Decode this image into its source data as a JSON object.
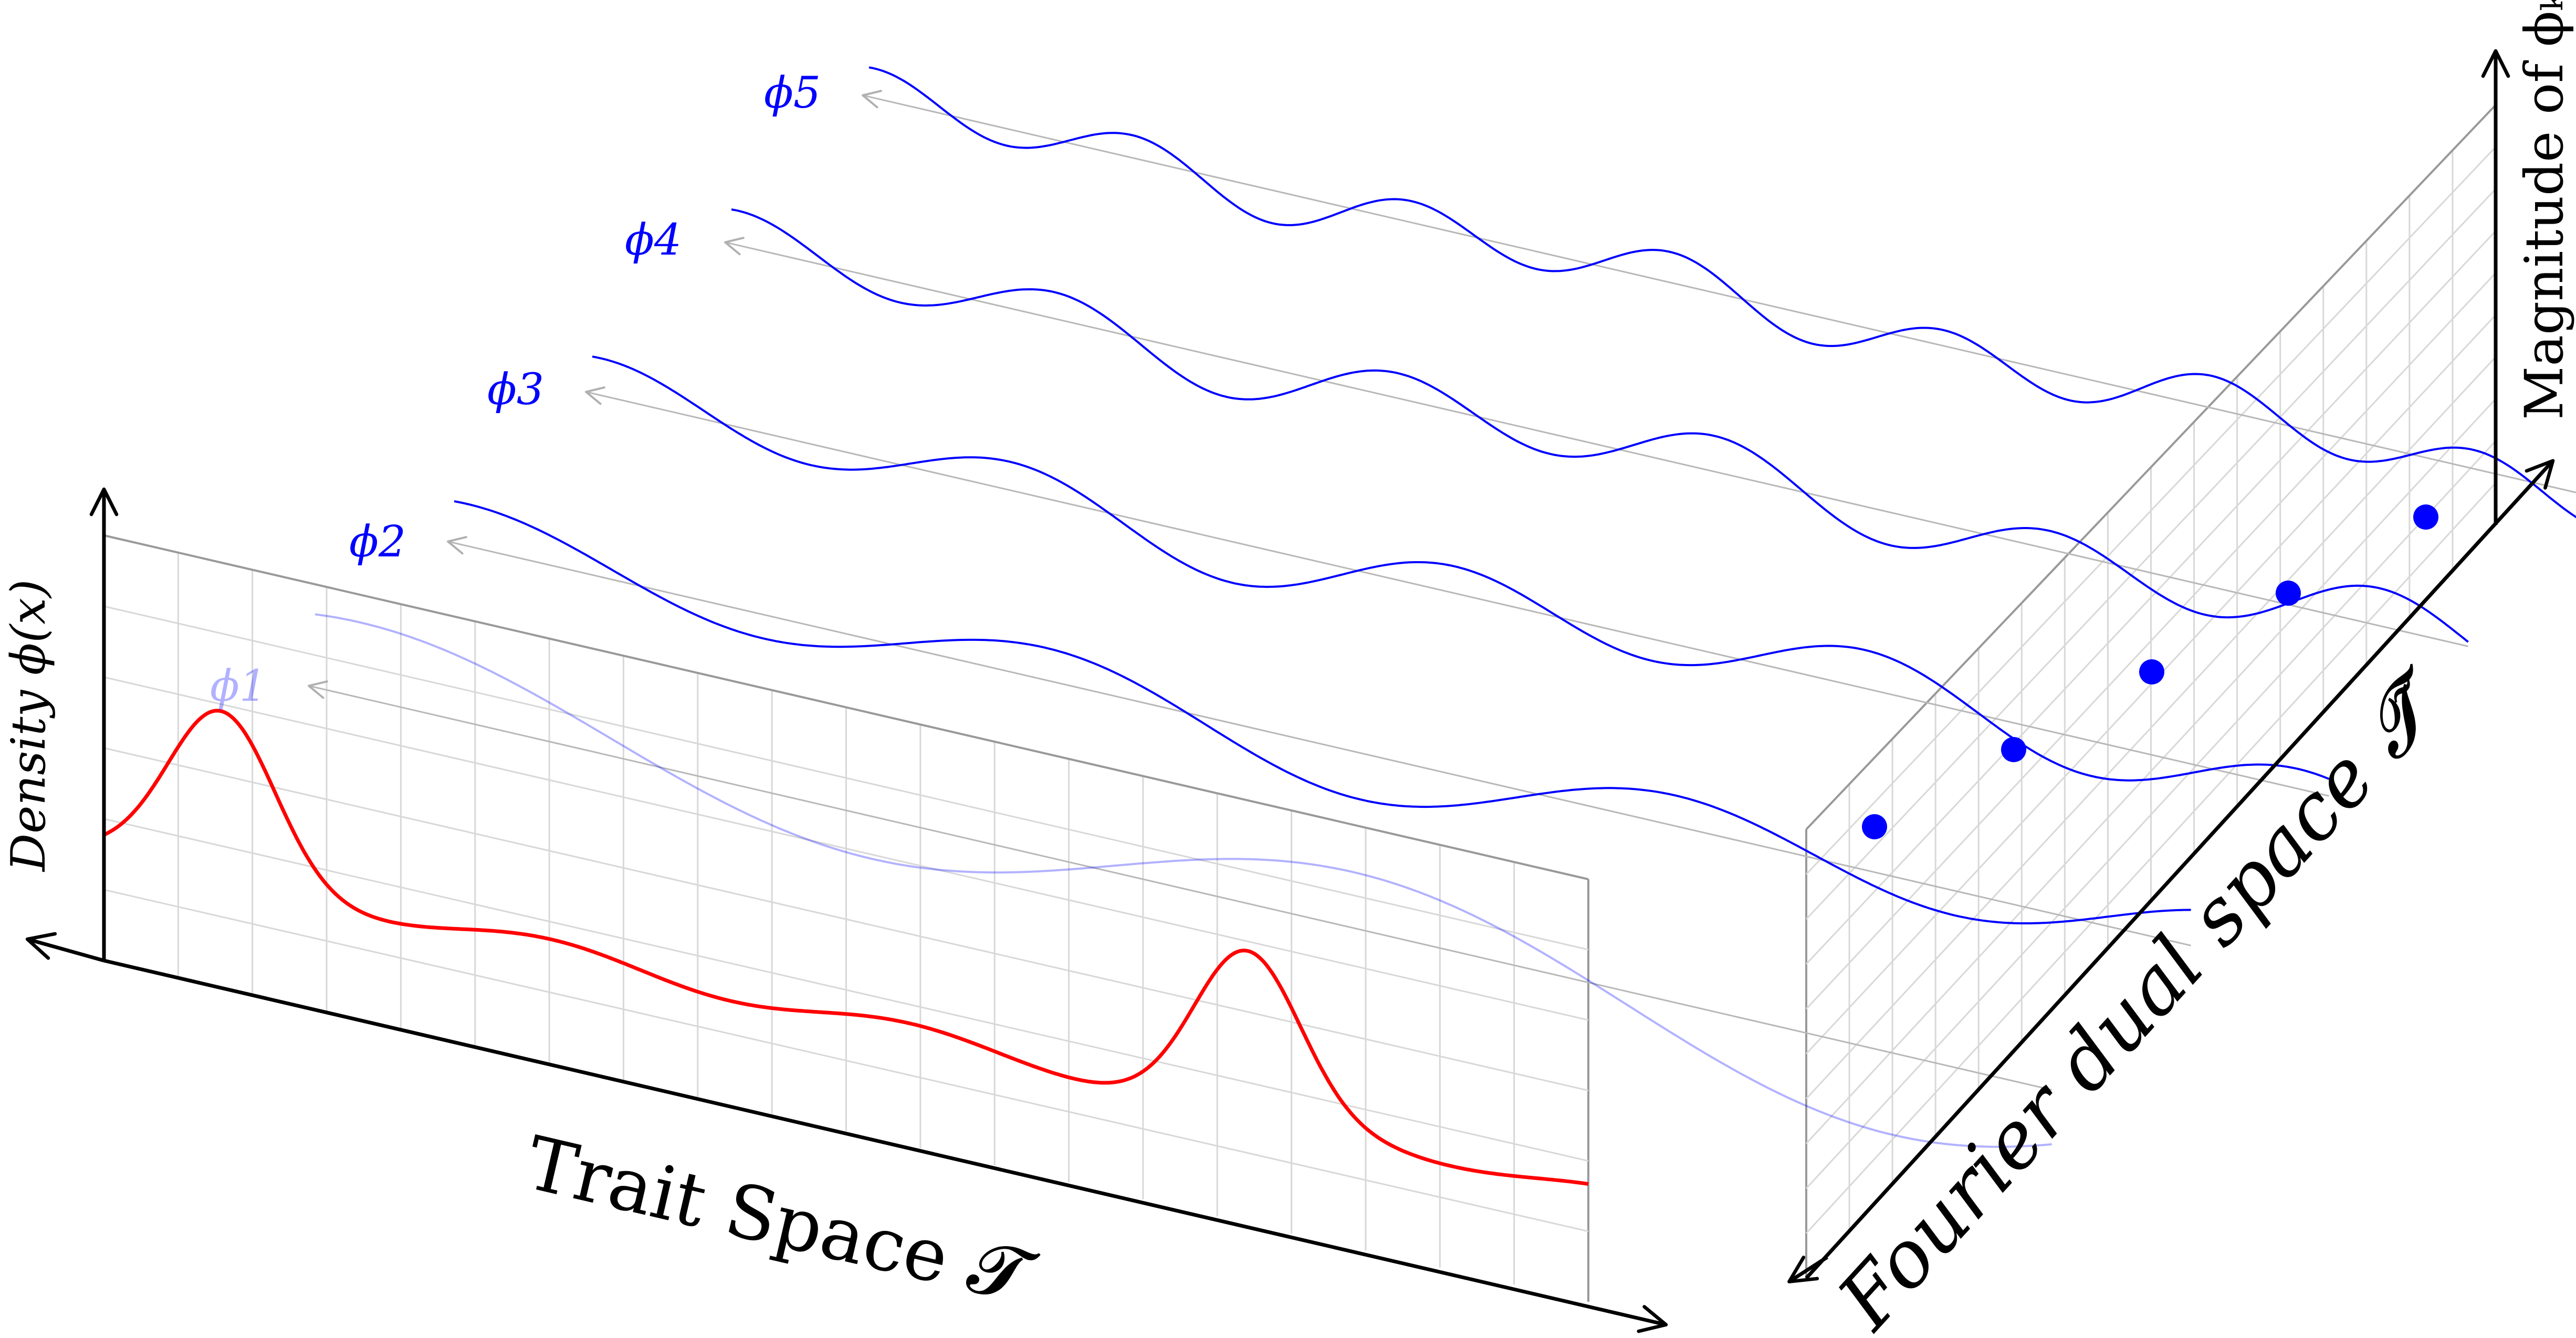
{
  "figure": {
    "left_panel": {
      "axis_label_vertical": "Density ϕ(x)",
      "axis_label_horizontal": "Trait Space 𝓣",
      "density_curve_color": "#ff0000"
    },
    "right_panel": {
      "axis_label_diagonal": "Fourier dual space 𝓣̃",
      "axis_label_vertical": "Magnitude of ϕₖ",
      "point_color": "#0000ff",
      "point_count": 5
    },
    "basis_functions": {
      "color": "#0000ff",
      "labels": [
        "ϕ1",
        "ϕ2",
        "ϕ3",
        "ϕ4",
        "ϕ5"
      ]
    }
  }
}
